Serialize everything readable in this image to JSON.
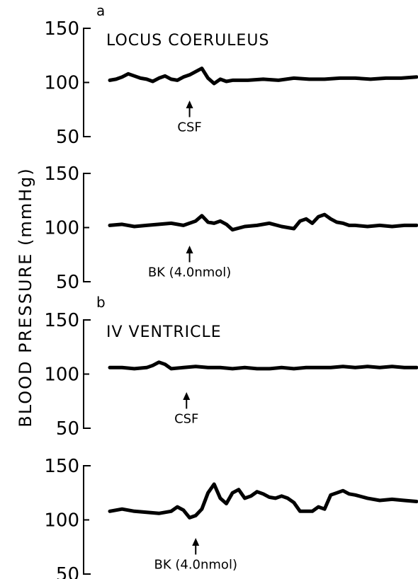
{
  "ylabel": "BLOOD PRESSURE (mmHg)",
  "chart_data": [
    {
      "type": "line",
      "panel_letter": "a",
      "region": "LOCUS COERULEUS",
      "yticks": [
        "150",
        "100",
        "50"
      ],
      "ylim": [
        50,
        150
      ],
      "xlim": [
        0,
        100
      ],
      "annotation": {
        "text": "CSF",
        "x": 26
      },
      "series": [
        {
          "x": [
            0,
            2,
            4,
            6,
            8,
            10,
            12,
            14,
            16,
            18,
            20,
            22,
            24,
            26,
            28,
            30,
            32,
            34,
            36,
            38,
            40,
            45,
            50,
            55,
            60,
            65,
            70,
            75,
            80,
            85,
            90,
            95,
            100
          ],
          "values": [
            102,
            103,
            105,
            108,
            106,
            104,
            103,
            101,
            104,
            106,
            103,
            102,
            105,
            107,
            110,
            113,
            104,
            99,
            103,
            101,
            102,
            102,
            103,
            102,
            104,
            103,
            103,
            104,
            104,
            103,
            104,
            104,
            105
          ]
        }
      ]
    },
    {
      "type": "line",
      "panel_letter": "",
      "region": "",
      "yticks": [
        "150",
        "100",
        "50"
      ],
      "ylim": [
        50,
        150
      ],
      "xlim": [
        0,
        100
      ],
      "annotation": {
        "text": "BK (4.0nmol)",
        "x": 26
      },
      "series": [
        {
          "x": [
            0,
            4,
            8,
            12,
            16,
            20,
            24,
            28,
            30,
            32,
            34,
            36,
            38,
            40,
            44,
            48,
            52,
            56,
            60,
            62,
            64,
            66,
            68,
            70,
            72,
            74,
            76,
            78,
            80,
            84,
            88,
            92,
            96,
            100
          ],
          "values": [
            102,
            103,
            101,
            102,
            103,
            104,
            102,
            106,
            111,
            105,
            104,
            106,
            103,
            98,
            101,
            102,
            104,
            101,
            99,
            106,
            108,
            104,
            110,
            112,
            108,
            105,
            104,
            102,
            102,
            101,
            102,
            101,
            102,
            102
          ]
        }
      ]
    },
    {
      "type": "line",
      "panel_letter": "b",
      "region": "IV VENTRICLE",
      "yticks": [
        "150",
        "100",
        "50"
      ],
      "ylim": [
        50,
        150
      ],
      "xlim": [
        0,
        100
      ],
      "annotation": {
        "text": "CSF",
        "x": 25
      },
      "series": [
        {
          "x": [
            0,
            4,
            8,
            12,
            14,
            16,
            18,
            20,
            24,
            28,
            32,
            36,
            40,
            44,
            48,
            52,
            56,
            60,
            64,
            68,
            72,
            76,
            80,
            84,
            88,
            92,
            96,
            100
          ],
          "values": [
            106,
            106,
            105,
            106,
            108,
            111,
            109,
            105,
            106,
            107,
            106,
            106,
            105,
            106,
            105,
            105,
            106,
            105,
            106,
            106,
            106,
            107,
            106,
            107,
            106,
            107,
            106,
            106
          ]
        }
      ]
    },
    {
      "type": "line",
      "panel_letter": "",
      "region": "",
      "yticks": [
        "150",
        "100",
        "50"
      ],
      "ylim": [
        50,
        150
      ],
      "xlim": [
        0,
        100
      ],
      "annotation": {
        "text": "BK (4.0nmol)",
        "x": 28
      },
      "series": [
        {
          "x": [
            0,
            4,
            8,
            12,
            16,
            20,
            22,
            24,
            26,
            28,
            30,
            32,
            34,
            36,
            38,
            40,
            42,
            44,
            46,
            48,
            50,
            52,
            54,
            56,
            58,
            60,
            62,
            66,
            68,
            70,
            72,
            74,
            76,
            78,
            80,
            84,
            88,
            92,
            96,
            100
          ],
          "values": [
            108,
            110,
            108,
            107,
            106,
            108,
            112,
            109,
            102,
            104,
            110,
            125,
            133,
            120,
            115,
            125,
            128,
            120,
            122,
            126,
            124,
            121,
            120,
            122,
            120,
            116,
            108,
            108,
            112,
            110,
            123,
            125,
            127,
            124,
            123,
            120,
            118,
            119,
            118,
            117
          ]
        }
      ]
    }
  ]
}
